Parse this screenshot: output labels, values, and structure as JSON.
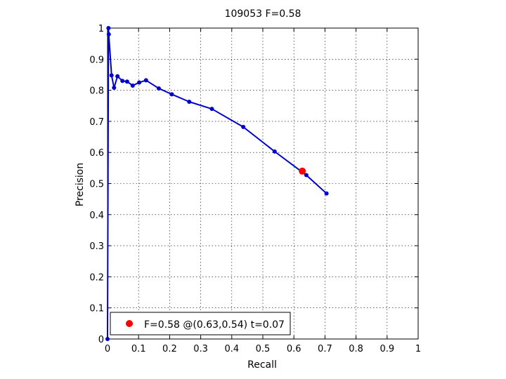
{
  "chart_data": {
    "type": "line",
    "title": "109053 F=0.58",
    "xlabel": "Recall",
    "ylabel": "Precision",
    "xlim": [
      0,
      1
    ],
    "ylim": [
      0,
      1
    ],
    "grid": true,
    "xticks": [
      "0",
      "0.1",
      "0.2",
      "0.3",
      "0.4",
      "0.5",
      "0.6",
      "0.7",
      "0.8",
      "0.9",
      "1"
    ],
    "yticks": [
      "0",
      "0.1",
      "0.2",
      "0.3",
      "0.4",
      "0.5",
      "0.6",
      "0.7",
      "0.8",
      "0.9",
      "1"
    ],
    "series": [
      {
        "color": "#0000cc",
        "x": [
          0.0,
          0.003,
          0.004,
          0.013,
          0.021,
          0.032,
          0.048,
          0.063,
          0.081,
          0.102,
          0.124,
          0.165,
          0.207,
          0.263,
          0.336,
          0.437,
          0.538,
          0.64,
          0.705
        ],
        "y": [
          0.0,
          1.0,
          0.98,
          0.848,
          0.808,
          0.845,
          0.83,
          0.828,
          0.815,
          0.825,
          0.832,
          0.806,
          0.787,
          0.763,
          0.74,
          0.682,
          0.603,
          0.527,
          0.468
        ]
      }
    ],
    "highlight": {
      "x": 0.627,
      "y": 0.54,
      "color": "#ff0000"
    },
    "legend": {
      "position": "bottom-left",
      "label": "F=0.58 @(0.63,0.54) t=0.07"
    }
  }
}
